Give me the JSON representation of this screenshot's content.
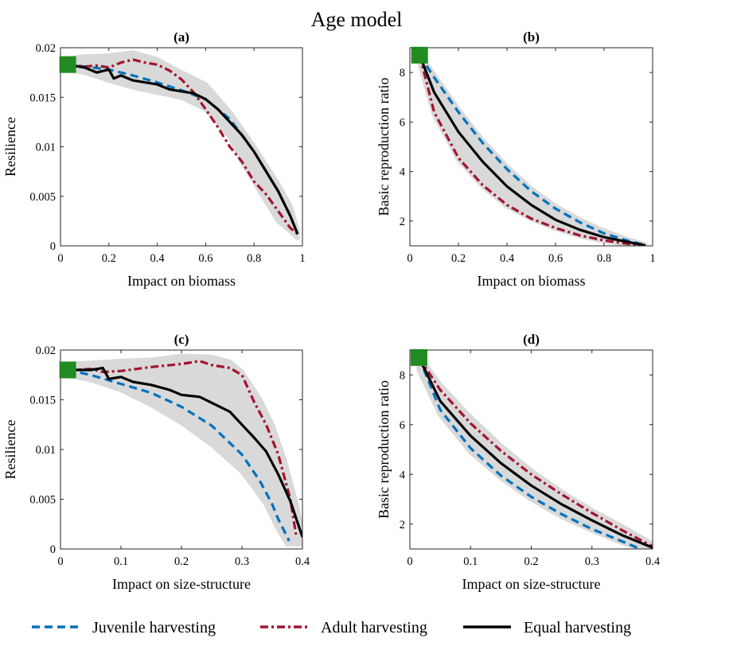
{
  "figure": {
    "title": "Age model"
  },
  "legend": {
    "items": [
      {
        "label": "Juvenile harvesting",
        "color": "#0072BD",
        "dash": "dashed"
      },
      {
        "label": "Adult harvesting",
        "color": "#A2142F",
        "dash": "dashdot"
      },
      {
        "label": "Equal harvesting",
        "color": "#000000",
        "dash": "solid"
      }
    ]
  },
  "colors": {
    "band": "#d9d9d9",
    "marker": "#228B22",
    "axis": "#262626"
  },
  "chart_data": [
    {
      "panel": "a",
      "title": "(a)",
      "type": "line",
      "xlabel": "Impact on biomass",
      "ylabel": "Resilience",
      "xlim": [
        0,
        1
      ],
      "ylim": [
        0,
        0.02
      ],
      "xticks": [
        0,
        0.2,
        0.4,
        0.6,
        0.8,
        1
      ],
      "xtick_labels": [
        "0",
        "0.2",
        "0.4",
        "0.6",
        "0.8",
        "1"
      ],
      "yticks": [
        0,
        0.005,
        0.01,
        0.015,
        0.02
      ],
      "ytick_labels": [
        "0",
        "0.005",
        "0.01",
        "0.015",
        "0.02"
      ],
      "marker": {
        "x": 0.03,
        "y": 0.0183,
        "shape": "square"
      },
      "band": {
        "upper": [
          [
            0.03,
            0.0189
          ],
          [
            0.1,
            0.0191
          ],
          [
            0.2,
            0.0192
          ],
          [
            0.3,
            0.0195
          ],
          [
            0.4,
            0.0188
          ],
          [
            0.5,
            0.0175
          ],
          [
            0.6,
            0.0163
          ],
          [
            0.7,
            0.0135
          ],
          [
            0.8,
            0.01
          ],
          [
            0.9,
            0.0062
          ],
          [
            0.95,
            0.004
          ],
          [
            0.98,
            0.0015
          ]
        ],
        "lower": [
          [
            0.98,
            0.0008
          ],
          [
            0.95,
            0.0015
          ],
          [
            0.9,
            0.0025
          ],
          [
            0.85,
            0.0045
          ],
          [
            0.8,
            0.0065
          ],
          [
            0.75,
            0.0085
          ],
          [
            0.7,
            0.011
          ],
          [
            0.6,
            0.0138
          ],
          [
            0.5,
            0.015
          ],
          [
            0.4,
            0.0155
          ],
          [
            0.3,
            0.016
          ],
          [
            0.2,
            0.0167
          ],
          [
            0.1,
            0.0175
          ],
          [
            0.03,
            0.0178
          ]
        ]
      },
      "series": [
        {
          "name": "Juvenile harvesting",
          "x": [
            0.03,
            0.1,
            0.2,
            0.3,
            0.4,
            0.5,
            0.6,
            0.7,
            0.8,
            0.9,
            0.95,
            0.98
          ],
          "y": [
            0.0183,
            0.0181,
            0.0178,
            0.0172,
            0.0165,
            0.0157,
            0.0148,
            0.0128,
            0.0095,
            0.0055,
            0.003,
            0.0012
          ]
        },
        {
          "name": "Adult harvesting",
          "x": [
            0.03,
            0.1,
            0.15,
            0.2,
            0.25,
            0.3,
            0.35,
            0.4,
            0.45,
            0.5,
            0.55,
            0.6,
            0.65,
            0.7,
            0.75,
            0.8,
            0.85,
            0.9,
            0.95,
            0.98
          ],
          "y": [
            0.0183,
            0.0181,
            0.0182,
            0.018,
            0.0185,
            0.0188,
            0.0185,
            0.0183,
            0.0177,
            0.0168,
            0.0155,
            0.0138,
            0.012,
            0.01,
            0.0085,
            0.0065,
            0.0052,
            0.0035,
            0.0018,
            0.0012
          ]
        },
        {
          "name": "Equal harvesting",
          "x": [
            0.03,
            0.1,
            0.15,
            0.2,
            0.22,
            0.25,
            0.3,
            0.35,
            0.4,
            0.45,
            0.5,
            0.55,
            0.6,
            0.65,
            0.7,
            0.75,
            0.8,
            0.85,
            0.9,
            0.95,
            0.98
          ],
          "y": [
            0.0183,
            0.018,
            0.0175,
            0.0178,
            0.0169,
            0.0172,
            0.0167,
            0.0165,
            0.0163,
            0.0158,
            0.0156,
            0.0154,
            0.0148,
            0.0138,
            0.0125,
            0.0112,
            0.0095,
            0.0075,
            0.0055,
            0.003,
            0.0012
          ]
        }
      ]
    },
    {
      "panel": "b",
      "title": "(b)",
      "type": "line",
      "xlabel": "Impact on biomass",
      "ylabel": "Basic reproduction ratio",
      "xlim": [
        0,
        1
      ],
      "ylim": [
        1,
        9
      ],
      "xticks": [
        0,
        0.2,
        0.4,
        0.6,
        0.8,
        1
      ],
      "xtick_labels": [
        "0",
        "0.2",
        "0.4",
        "0.6",
        "0.8",
        "1"
      ],
      "yticks": [
        2,
        4,
        6,
        8
      ],
      "ytick_labels": [
        "2",
        "4",
        "6",
        "8"
      ],
      "marker": {
        "x": 0.04,
        "y": 8.7,
        "shape": "square"
      },
      "band": {
        "upper": [
          [
            0.04,
            8.75
          ],
          [
            0.1,
            7.9
          ],
          [
            0.2,
            6.5
          ],
          [
            0.3,
            5.25
          ],
          [
            0.4,
            4.2
          ],
          [
            0.5,
            3.3
          ],
          [
            0.6,
            2.6
          ],
          [
            0.7,
            2.05
          ],
          [
            0.8,
            1.6
          ],
          [
            0.9,
            1.25
          ],
          [
            0.97,
            1.05
          ]
        ],
        "lower": [
          [
            0.97,
            1.0
          ],
          [
            0.9,
            1.05
          ],
          [
            0.8,
            1.2
          ],
          [
            0.7,
            1.4
          ],
          [
            0.6,
            1.7
          ],
          [
            0.5,
            2.1
          ],
          [
            0.4,
            2.6
          ],
          [
            0.3,
            3.4
          ],
          [
            0.2,
            4.5
          ],
          [
            0.1,
            6.3
          ],
          [
            0.04,
            8.4
          ]
        ]
      },
      "series": [
        {
          "name": "Juvenile harvesting",
          "x": [
            0.04,
            0.1,
            0.2,
            0.3,
            0.4,
            0.5,
            0.6,
            0.7,
            0.8,
            0.9,
            0.97
          ],
          "y": [
            8.7,
            7.8,
            6.4,
            5.15,
            4.1,
            3.2,
            2.5,
            1.95,
            1.5,
            1.2,
            1.03
          ]
        },
        {
          "name": "Adult harvesting",
          "x": [
            0.04,
            0.1,
            0.2,
            0.3,
            0.4,
            0.5,
            0.6,
            0.7,
            0.8,
            0.9,
            0.97
          ],
          "y": [
            8.7,
            6.4,
            4.55,
            3.45,
            2.65,
            2.1,
            1.72,
            1.42,
            1.22,
            1.08,
            1.01
          ]
        },
        {
          "name": "Equal harvesting",
          "x": [
            0.04,
            0.1,
            0.2,
            0.3,
            0.4,
            0.5,
            0.6,
            0.7,
            0.8,
            0.9,
            0.97
          ],
          "y": [
            8.7,
            7.2,
            5.6,
            4.4,
            3.4,
            2.65,
            2.05,
            1.65,
            1.35,
            1.15,
            1.02
          ]
        }
      ]
    },
    {
      "panel": "c",
      "title": "(c)",
      "type": "line",
      "xlabel": "Impact on size-structure",
      "ylabel": "Resilience",
      "xlim": [
        0,
        0.4
      ],
      "ylim": [
        0,
        0.02
      ],
      "xticks": [
        0,
        0.1,
        0.2,
        0.3,
        0.4
      ],
      "xtick_labels": [
        "0",
        "0.1",
        "0.2",
        "0.3",
        "0.4"
      ],
      "yticks": [
        0,
        0.005,
        0.01,
        0.015,
        0.02
      ],
      "ytick_labels": [
        "0",
        "0.005",
        "0.01",
        "0.015",
        "0.02"
      ],
      "marker": {
        "x": 0.012,
        "y": 0.018,
        "shape": "square"
      },
      "band": {
        "upper": [
          [
            0.012,
            0.0186
          ],
          [
            0.05,
            0.0187
          ],
          [
            0.1,
            0.0189
          ],
          [
            0.15,
            0.019
          ],
          [
            0.2,
            0.0194
          ],
          [
            0.25,
            0.0193
          ],
          [
            0.28,
            0.0188
          ],
          [
            0.3,
            0.0178
          ],
          [
            0.33,
            0.015
          ],
          [
            0.35,
            0.0125
          ],
          [
            0.37,
            0.009
          ],
          [
            0.39,
            0.0045
          ],
          [
            0.4,
            0.0015
          ]
        ],
        "lower": [
          [
            0.4,
            0.0005
          ],
          [
            0.39,
            0.0005
          ],
          [
            0.375,
            0.0005
          ],
          [
            0.36,
            0.002
          ],
          [
            0.34,
            0.0045
          ],
          [
            0.32,
            0.0062
          ],
          [
            0.3,
            0.0078
          ],
          [
            0.25,
            0.0105
          ],
          [
            0.2,
            0.0127
          ],
          [
            0.15,
            0.0145
          ],
          [
            0.1,
            0.016
          ],
          [
            0.05,
            0.017
          ],
          [
            0.012,
            0.0175
          ]
        ]
      },
      "series": [
        {
          "name": "Juvenile harvesting",
          "x": [
            0.012,
            0.05,
            0.1,
            0.15,
            0.2,
            0.25,
            0.3,
            0.33,
            0.35,
            0.36,
            0.37,
            0.378
          ],
          "y": [
            0.018,
            0.0175,
            0.0166,
            0.0157,
            0.0143,
            0.0124,
            0.0095,
            0.0068,
            0.0045,
            0.003,
            0.0018,
            0.0008
          ]
        },
        {
          "name": "Adult harvesting",
          "x": [
            0.012,
            0.05,
            0.07,
            0.1,
            0.15,
            0.2,
            0.23,
            0.25,
            0.28,
            0.3,
            0.32,
            0.34,
            0.36,
            0.38,
            0.39
          ],
          "y": [
            0.018,
            0.0181,
            0.0178,
            0.0179,
            0.0183,
            0.0186,
            0.0189,
            0.0185,
            0.0182,
            0.0175,
            0.0148,
            0.0125,
            0.0095,
            0.005,
            0.0012
          ]
        },
        {
          "name": "Equal harvesting",
          "x": [
            0.012,
            0.05,
            0.07,
            0.08,
            0.1,
            0.12,
            0.15,
            0.18,
            0.2,
            0.23,
            0.25,
            0.28,
            0.3,
            0.32,
            0.34,
            0.36,
            0.38,
            0.4
          ],
          "y": [
            0.018,
            0.018,
            0.0182,
            0.0171,
            0.0173,
            0.0168,
            0.0165,
            0.016,
            0.0155,
            0.0153,
            0.0147,
            0.0138,
            0.0125,
            0.0112,
            0.0098,
            0.0075,
            0.0048,
            0.0012
          ]
        }
      ]
    },
    {
      "panel": "d",
      "title": "(d)",
      "type": "line",
      "xlabel": "Impact on size-structure",
      "ylabel": "Basic reproduction ratio",
      "xlim": [
        0,
        0.4
      ],
      "ylim": [
        1,
        9
      ],
      "xticks": [
        0,
        0.1,
        0.2,
        0.3,
        0.4
      ],
      "xtick_labels": [
        "0",
        "0.1",
        "0.2",
        "0.3",
        "0.4"
      ],
      "yticks": [
        2,
        4,
        6,
        8
      ],
      "ytick_labels": [
        "2",
        "4",
        "6",
        "8"
      ],
      "marker": {
        "x": 0.015,
        "y": 8.7,
        "shape": "square"
      },
      "band": {
        "upper": [
          [
            0.015,
            8.75
          ],
          [
            0.05,
            7.6
          ],
          [
            0.1,
            6.3
          ],
          [
            0.15,
            5.15
          ],
          [
            0.2,
            4.15
          ],
          [
            0.25,
            3.3
          ],
          [
            0.3,
            2.55
          ],
          [
            0.35,
            1.9
          ],
          [
            0.4,
            1.2
          ]
        ],
        "lower": [
          [
            0.4,
            1.0
          ],
          [
            0.38,
            1.0
          ],
          [
            0.35,
            1.25
          ],
          [
            0.3,
            1.75
          ],
          [
            0.25,
            2.3
          ],
          [
            0.2,
            3.0
          ],
          [
            0.15,
            3.85
          ],
          [
            0.1,
            4.9
          ],
          [
            0.05,
            6.4
          ],
          [
            0.015,
            8.2
          ]
        ]
      },
      "series": [
        {
          "name": "Juvenile harvesting",
          "x": [
            0.015,
            0.05,
            0.1,
            0.15,
            0.2,
            0.25,
            0.3,
            0.35,
            0.38
          ],
          "y": [
            8.7,
            6.6,
            5.05,
            3.95,
            3.1,
            2.4,
            1.8,
            1.3,
            1.0
          ]
        },
        {
          "name": "Adult harvesting",
          "x": [
            0.015,
            0.05,
            0.1,
            0.15,
            0.2,
            0.25,
            0.3,
            0.35,
            0.4
          ],
          "y": [
            8.7,
            7.4,
            6.05,
            4.95,
            4.0,
            3.2,
            2.45,
            1.75,
            1.1
          ]
        },
        {
          "name": "Equal harvesting",
          "x": [
            0.015,
            0.05,
            0.1,
            0.15,
            0.2,
            0.25,
            0.3,
            0.35,
            0.4
          ],
          "y": [
            8.7,
            6.95,
            5.55,
            4.45,
            3.55,
            2.8,
            2.15,
            1.55,
            1.05
          ]
        }
      ]
    }
  ]
}
